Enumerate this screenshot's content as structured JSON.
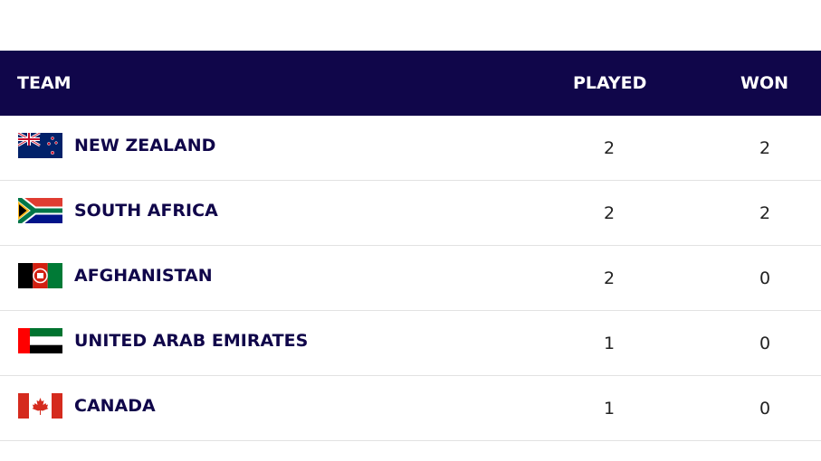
{
  "table": {
    "columns": [
      "TEAM",
      "PLAYED",
      "WON"
    ],
    "rows": [
      [
        "NEW ZEALAND",
        2,
        2
      ],
      [
        "SOUTH AFRICA",
        2,
        2
      ],
      [
        "AFGHANISTAN",
        2,
        0
      ],
      [
        "UNITED ARAB EMIRATES",
        1,
        0
      ],
      [
        "CANADA",
        1,
        0
      ]
    ]
  }
}
